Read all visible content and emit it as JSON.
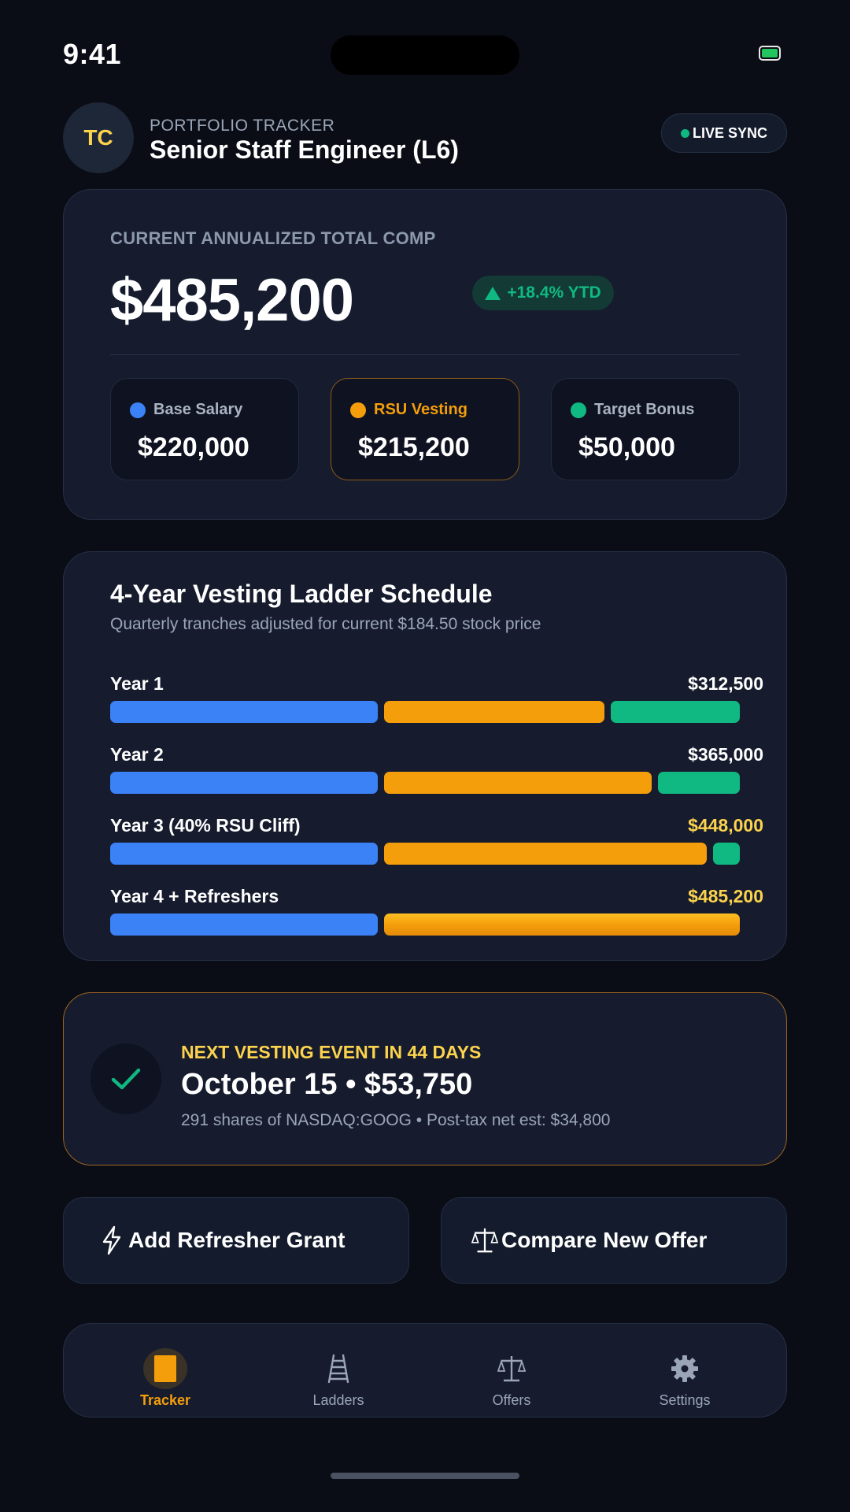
{
  "status": {
    "time": "9:41"
  },
  "header": {
    "avatar_initials": "TC",
    "eyebrow": "PORTFOLIO TRACKER",
    "title": "Senior Staff Engineer (L6)",
    "sync_label": "LIVE SYNC"
  },
  "comp": {
    "label": "CURRENT ANNUALIZED TOTAL COMP",
    "value": "$485,200",
    "ytd": "+18.4% YTD",
    "tiles": [
      {
        "label": "Base Salary",
        "value": "$220,000",
        "color": "#3b82f6"
      },
      {
        "label": "RSU Vesting",
        "value": "$215,200",
        "color": "#f59e0b"
      },
      {
        "label": "Target Bonus",
        "value": "$50,000",
        "color": "#10b981"
      }
    ]
  },
  "ladder": {
    "title": "4-Year Vesting Ladder Schedule",
    "subtitle": "Quarterly tranches adjusted for current $184.50 stock price",
    "rows": [
      {
        "label": "Year 1",
        "amount": "$312,500"
      },
      {
        "label": "Year 2",
        "amount": "$365,000"
      },
      {
        "label": "Year 3 (40% RSU Cliff)",
        "amount": "$448,000"
      },
      {
        "label": "Year 4 + Refreshers",
        "amount": "$485,200"
      }
    ]
  },
  "next_event": {
    "label": "NEXT VESTING EVENT IN 44 DAYS",
    "title": "October 15 • $53,750",
    "description": "291 shares of NASDAQ:GOOG • Post-tax net est: $34,800"
  },
  "actions": {
    "add_refresher": "Add Refresher Grant",
    "compare_offer": "Compare New Offer"
  },
  "nav": {
    "items": [
      {
        "label": "Tracker",
        "icon": "tracker-icon"
      },
      {
        "label": "Ladders",
        "icon": "ladder-icon"
      },
      {
        "label": "Offers",
        "icon": "scale-icon"
      },
      {
        "label": "Settings",
        "icon": "gear-icon"
      }
    ]
  }
}
